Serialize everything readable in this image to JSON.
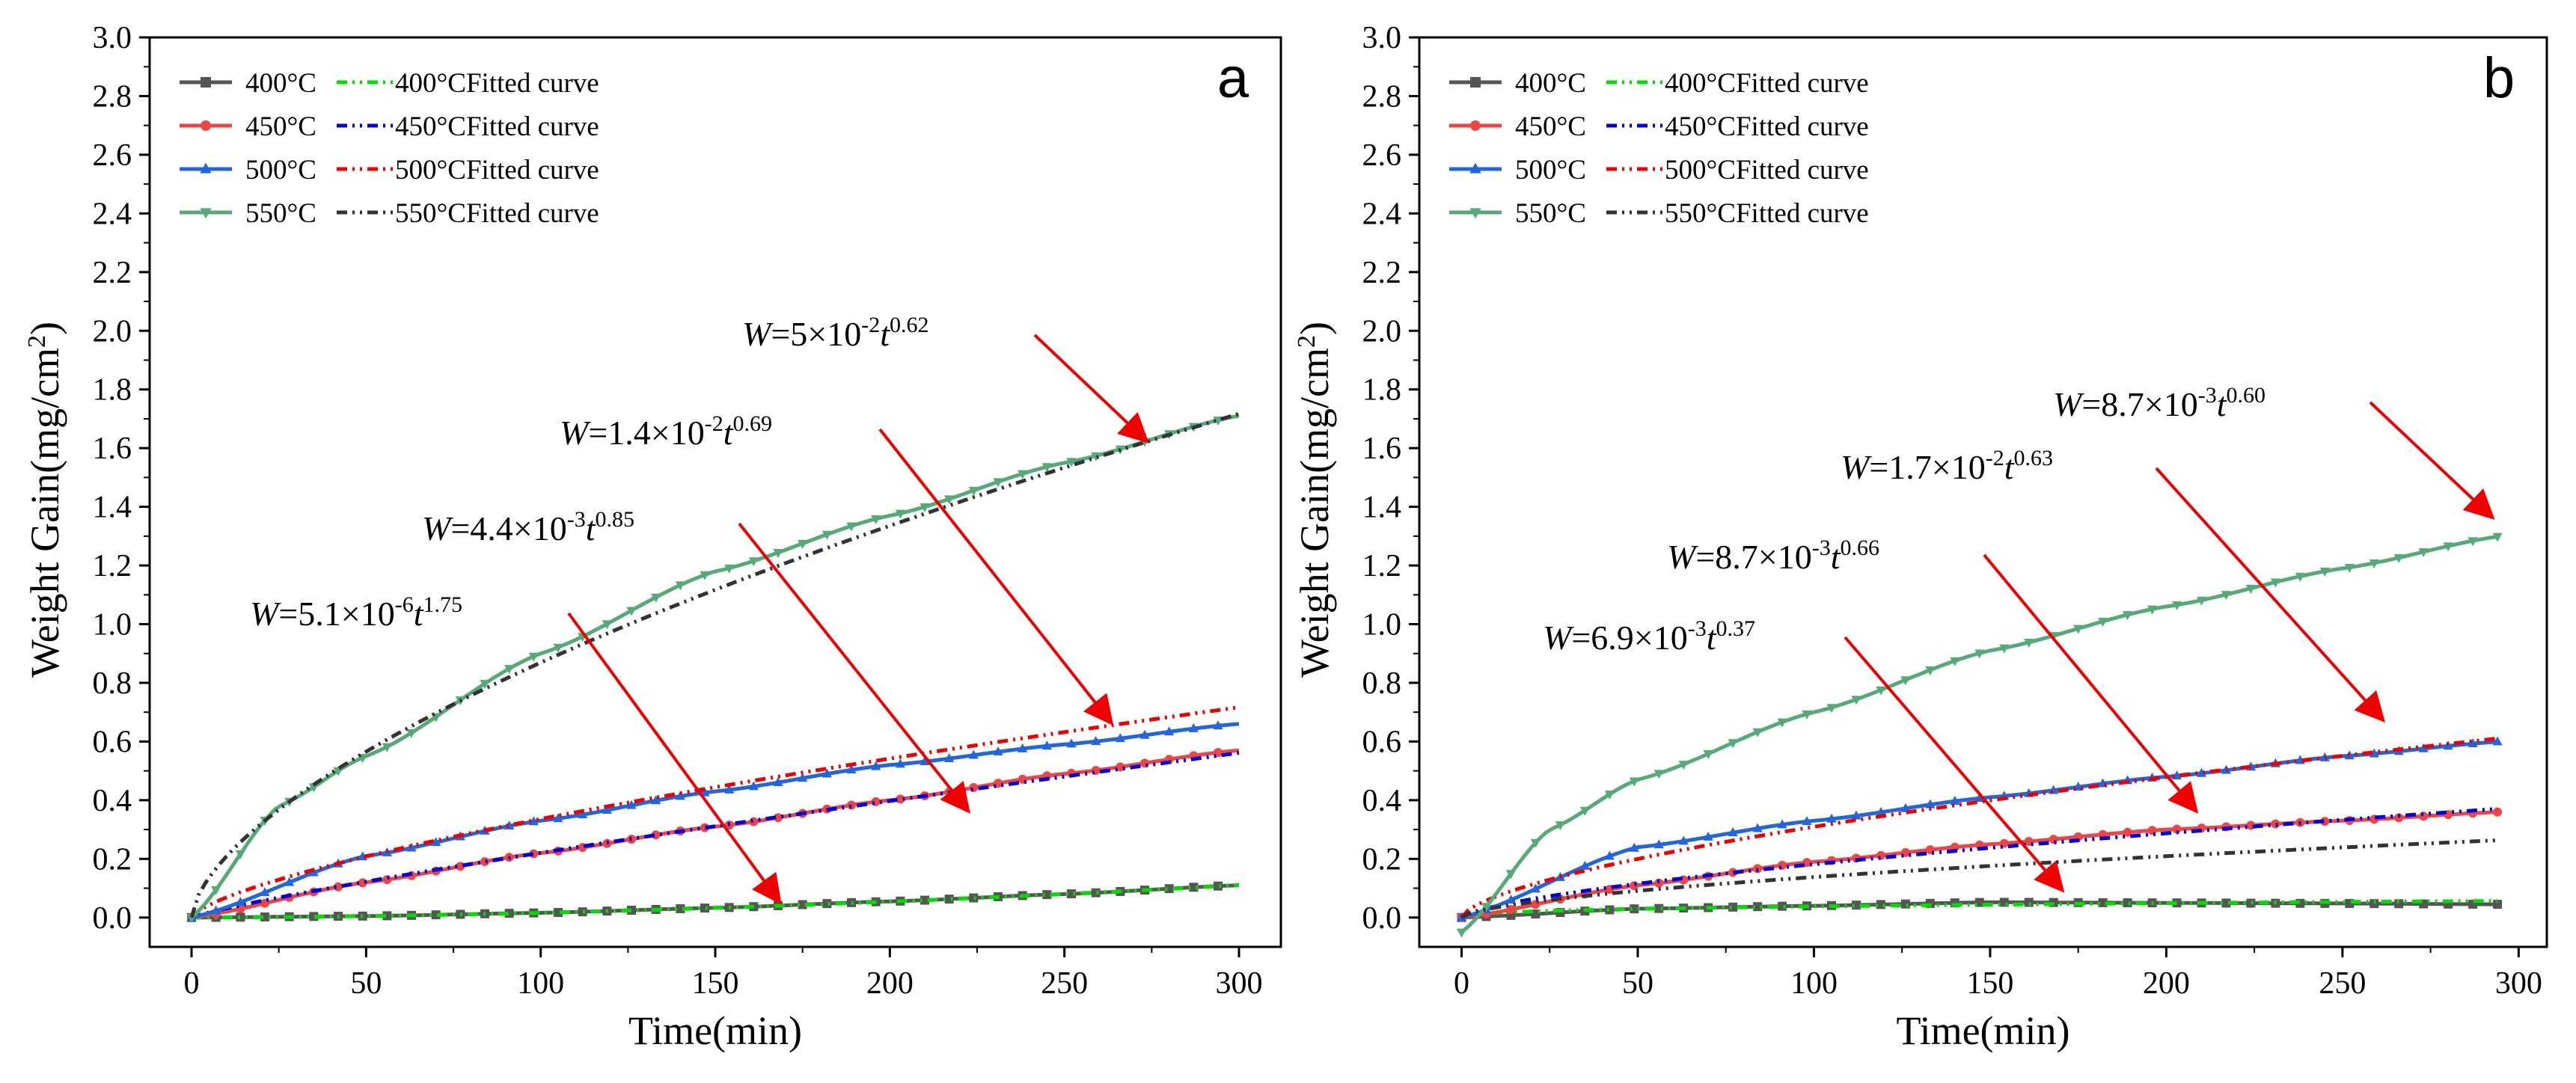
{
  "figure": {
    "description_none": "",
    "colors": {
      "s400": "#555555",
      "s450": "#ee4444",
      "s500": "#2266dd",
      "s550": "#55aa77",
      "f400": "#00dd00",
      "f450": "#0000dd",
      "f500": "#ee0000",
      "f550": "#333333",
      "arrow": "#ee0000"
    }
  },
  "chart_data": [
    {
      "type": "line",
      "panel_label": "a",
      "xlabel": "Time(min)",
      "ylabel": "Weight Gain(mg/cm",
      "ylabel_sup": "2",
      "ylabel_close": ")",
      "xlim": [
        -12,
        312
      ],
      "ylim": [
        -0.1,
        3.0
      ],
      "xticks": [
        "0",
        "50",
        "100",
        "150",
        "200",
        "250",
        "300"
      ],
      "yticks": [
        "0.0",
        "0.2",
        "0.4",
        "0.6",
        "0.8",
        "1.0",
        "1.2",
        "1.4",
        "1.6",
        "1.8",
        "2.0",
        "2.2",
        "2.4",
        "2.6",
        "2.8",
        "3.0"
      ],
      "legend_position": "top-left",
      "legend": [
        {
          "label": "400°C",
          "fit_label": "400°CFitted curve"
        },
        {
          "label": "450°C",
          "fit_label": "450°CFitted curve"
        },
        {
          "label": "500°C",
          "fit_label": "500°CFitted curve"
        },
        {
          "label": "550°C",
          "fit_label": "550°CFitted curve"
        }
      ],
      "series": [
        {
          "name": "400°C",
          "marker": "square",
          "model": {
            "a": 5.1e-06,
            "n": 1.75
          },
          "points": [
            [
              0,
              0.0
            ],
            [
              50,
              0.005
            ],
            [
              100,
              0.016
            ],
            [
              150,
              0.033
            ],
            [
              200,
              0.055
            ],
            [
              250,
              0.08
            ],
            [
              300,
              0.11
            ]
          ]
        },
        {
          "name": "450°C",
          "marker": "circle",
          "model": {
            "a": 0.0044,
            "n": 0.85
          },
          "points": [
            [
              0,
              0.0
            ],
            [
              50,
              0.12
            ],
            [
              100,
              0.22
            ],
            [
              150,
              0.31
            ],
            [
              200,
              0.4
            ],
            [
              250,
              0.49
            ],
            [
              300,
              0.57
            ]
          ]
        },
        {
          "name": "500°C",
          "marker": "triangle-up",
          "model": {
            "a": 0.014,
            "n": 0.69
          },
          "points": [
            [
              0,
              0.0
            ],
            [
              50,
              0.21
            ],
            [
              100,
              0.33
            ],
            [
              150,
              0.43
            ],
            [
              200,
              0.52
            ],
            [
              250,
              0.59
            ],
            [
              300,
              0.66
            ]
          ]
        },
        {
          "name": "550°C",
          "marker": "triangle-down",
          "model": {
            "a": 0.05,
            "n": 0.62
          },
          "points": [
            [
              0,
              0.0
            ],
            [
              25,
              0.38
            ],
            [
              50,
              0.55
            ],
            [
              100,
              0.9
            ],
            [
              150,
              1.18
            ],
            [
              200,
              1.37
            ],
            [
              250,
              1.55
            ],
            [
              300,
              1.71
            ]
          ]
        }
      ],
      "annotations": [
        {
          "pre": "5×10",
          "exp1": "-2",
          "mid": "t",
          "exp2": "0.62",
          "arrow_to": [
            273,
            1.63
          ]
        },
        {
          "pre": "1.4×10",
          "exp1": "-2",
          "mid": "t",
          "exp2": "0.69",
          "arrow_to": [
            263,
            0.67
          ]
        },
        {
          "pre": "4.4×10",
          "exp1": "-3",
          "mid": "t",
          "exp2": "0.85",
          "arrow_to": [
            222,
            0.37
          ]
        },
        {
          "pre": "5.1×10",
          "exp1": "-6",
          "mid": "t",
          "exp2": "1.75",
          "arrow_to": [
            168,
            0.06
          ]
        }
      ]
    },
    {
      "type": "line",
      "panel_label": "b",
      "xlabel": "Time(min)",
      "ylabel": "Weight Gain(mg/cm",
      "ylabel_sup": "2",
      "ylabel_close": ")",
      "xlim": [
        -12,
        308
      ],
      "ylim": [
        -0.1,
        3.0
      ],
      "xticks": [
        "0",
        "50",
        "100",
        "150",
        "200",
        "250",
        "300"
      ],
      "yticks": [
        "0.0",
        "0.2",
        "0.4",
        "0.6",
        "0.8",
        "1.0",
        "1.2",
        "1.4",
        "1.6",
        "1.8",
        "2.0",
        "2.2",
        "2.4",
        "2.6",
        "2.8",
        "3.0"
      ],
      "legend_position": "top-left",
      "legend": [
        {
          "label": "400°C",
          "fit_label": "400°CFitted curve"
        },
        {
          "label": "450°C",
          "fit_label": "450°CFitted curve"
        },
        {
          "label": "500°C",
          "fit_label": "500°CFitted curve"
        },
        {
          "label": "550°C",
          "fit_label": "550°CFitted curve"
        }
      ],
      "series": [
        {
          "name": "400°C",
          "marker": "square",
          "model": {
            "a": 0.0069,
            "n": 0.37
          },
          "points": [
            [
              0,
              0.0
            ],
            [
              50,
              0.03
            ],
            [
              100,
              0.04
            ],
            [
              150,
              0.052
            ],
            [
              200,
              0.05
            ],
            [
              250,
              0.048
            ],
            [
              295,
              0.045
            ]
          ]
        },
        {
          "name": "450°C",
          "marker": "circle",
          "model": {
            "a": 0.0087,
            "n": 0.66
          },
          "points": [
            [
              0,
              0.0
            ],
            [
              50,
              0.11
            ],
            [
              100,
              0.19
            ],
            [
              150,
              0.25
            ],
            [
              200,
              0.3
            ],
            [
              250,
              0.33
            ],
            [
              295,
              0.36
            ]
          ]
        },
        {
          "name": "500°C",
          "marker": "triangle-up",
          "model": {
            "a": 0.017,
            "n": 0.63
          },
          "points": [
            [
              0,
              0.0
            ],
            [
              50,
              0.24
            ],
            [
              100,
              0.33
            ],
            [
              150,
              0.41
            ],
            [
              200,
              0.48
            ],
            [
              250,
              0.55
            ],
            [
              295,
              0.6
            ]
          ]
        },
        {
          "name": "550°C",
          "marker": "triangle-down",
          "model": {
            "a": 0.0087,
            "n": 0.6
          },
          "points": [
            [
              0,
              -0.05
            ],
            [
              25,
              0.3
            ],
            [
              50,
              0.47
            ],
            [
              100,
              0.7
            ],
            [
              150,
              0.91
            ],
            [
              200,
              1.06
            ],
            [
              250,
              1.19
            ],
            [
              295,
              1.3
            ]
          ]
        }
      ],
      "annotations": [
        {
          "pre": "8.7×10",
          "exp1": "-3",
          "mid": "t",
          "exp2": "0.60",
          "arrow_to": [
            292,
            1.37
          ]
        },
        {
          "pre": "1.7×10",
          "exp1": "-2",
          "mid": "t",
          "exp2": "0.63",
          "arrow_to": [
            261,
            0.68
          ]
        },
        {
          "pre": "8.7×10",
          "exp1": "-3",
          "mid": "t",
          "exp2": "0.66",
          "arrow_to": [
            208,
            0.37
          ]
        },
        {
          "pre": "6.9×10",
          "exp1": "-3",
          "mid": "t",
          "exp2": "0.37",
          "arrow_to": [
            170,
            0.1
          ]
        }
      ]
    }
  ]
}
